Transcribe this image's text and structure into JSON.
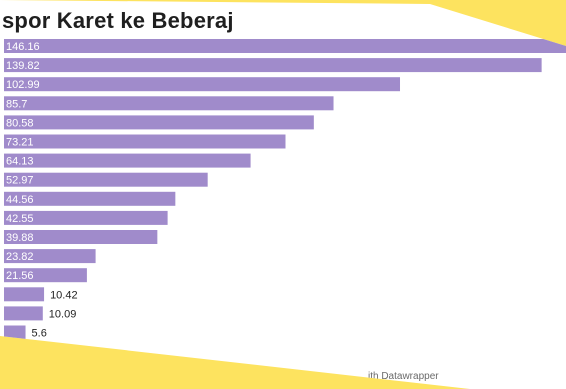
{
  "chart_data": {
    "type": "bar",
    "orientation": "horizontal",
    "title": "spor Karet ke Beberaj",
    "values": [
      146.16,
      139.82,
      102.99,
      85.7,
      80.58,
      73.21,
      64.13,
      52.97,
      44.56,
      42.55,
      39.88,
      23.82,
      21.56,
      10.42,
      10.09,
      5.6
    ],
    "value_labels": [
      "146.16",
      "139.82",
      "102.99",
      "85.7",
      "80.58",
      "73.21",
      "64.13",
      "52.97",
      "44.56",
      "42.55",
      "39.88",
      "23.82",
      "21.56",
      "10.42",
      "10.09",
      "5.6"
    ],
    "xlim": [
      0,
      146.16
    ],
    "bar_color": "#a08bcb",
    "label_color_inside": "#ffffff",
    "label_color_outside": "#222222",
    "grid": false,
    "legend": "none",
    "source_credit": "ith Datawrapper"
  }
}
